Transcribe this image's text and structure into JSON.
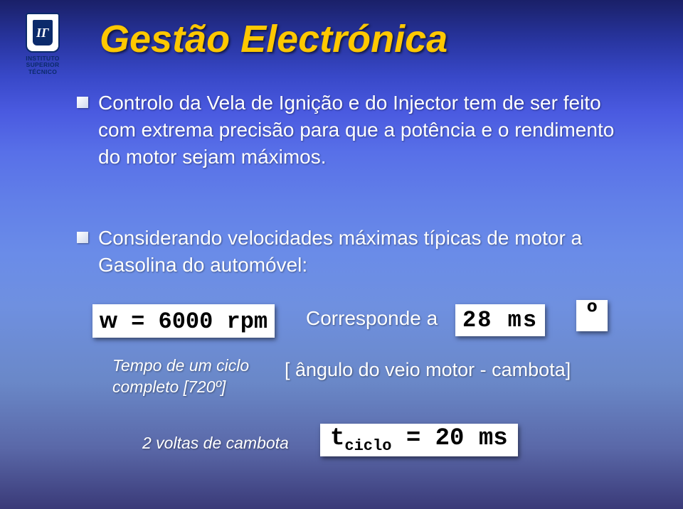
{
  "logo": {
    "glyph": "ΙΓ",
    "line1": "INSTITUTO",
    "line2": "SUPERIOR",
    "line3": "TÉCNICO"
  },
  "title": "Gestão Electrónica",
  "bullets": {
    "b1": "Controlo da Vela de Ignição e do Injector tem de ser feito com extrema precisão para que a potência e o rendimento do motor sejam máximos.",
    "b2": "Considerando velocidades máximas típicas de motor a Gasolina do automóvel:"
  },
  "formulas": {
    "rpm_prefix": "w",
    "rpm_rest": " = 6000 rpm",
    "corresponde": "Corresponde a",
    "ms_value": "28 ms",
    "deg_value": "º",
    "angulo": "[ ângulo do veio motor - cambota]",
    "tempo_l1": "Tempo de um ciclo",
    "tempo_l2": "completo [720º]",
    "voltas": "2 voltas de cambota",
    "tciclo_t": "t",
    "tciclo_sub": "ciclo",
    "tciclo_rest": " = 20 ms"
  },
  "style": {
    "title_color": "#ffc800",
    "text_color": "#ffffff",
    "box_bg": "#ffffff",
    "box_fg": "#000000",
    "title_fontsize": 54,
    "bullet_fontsize": 28,
    "formula_fontsize": 32
  }
}
